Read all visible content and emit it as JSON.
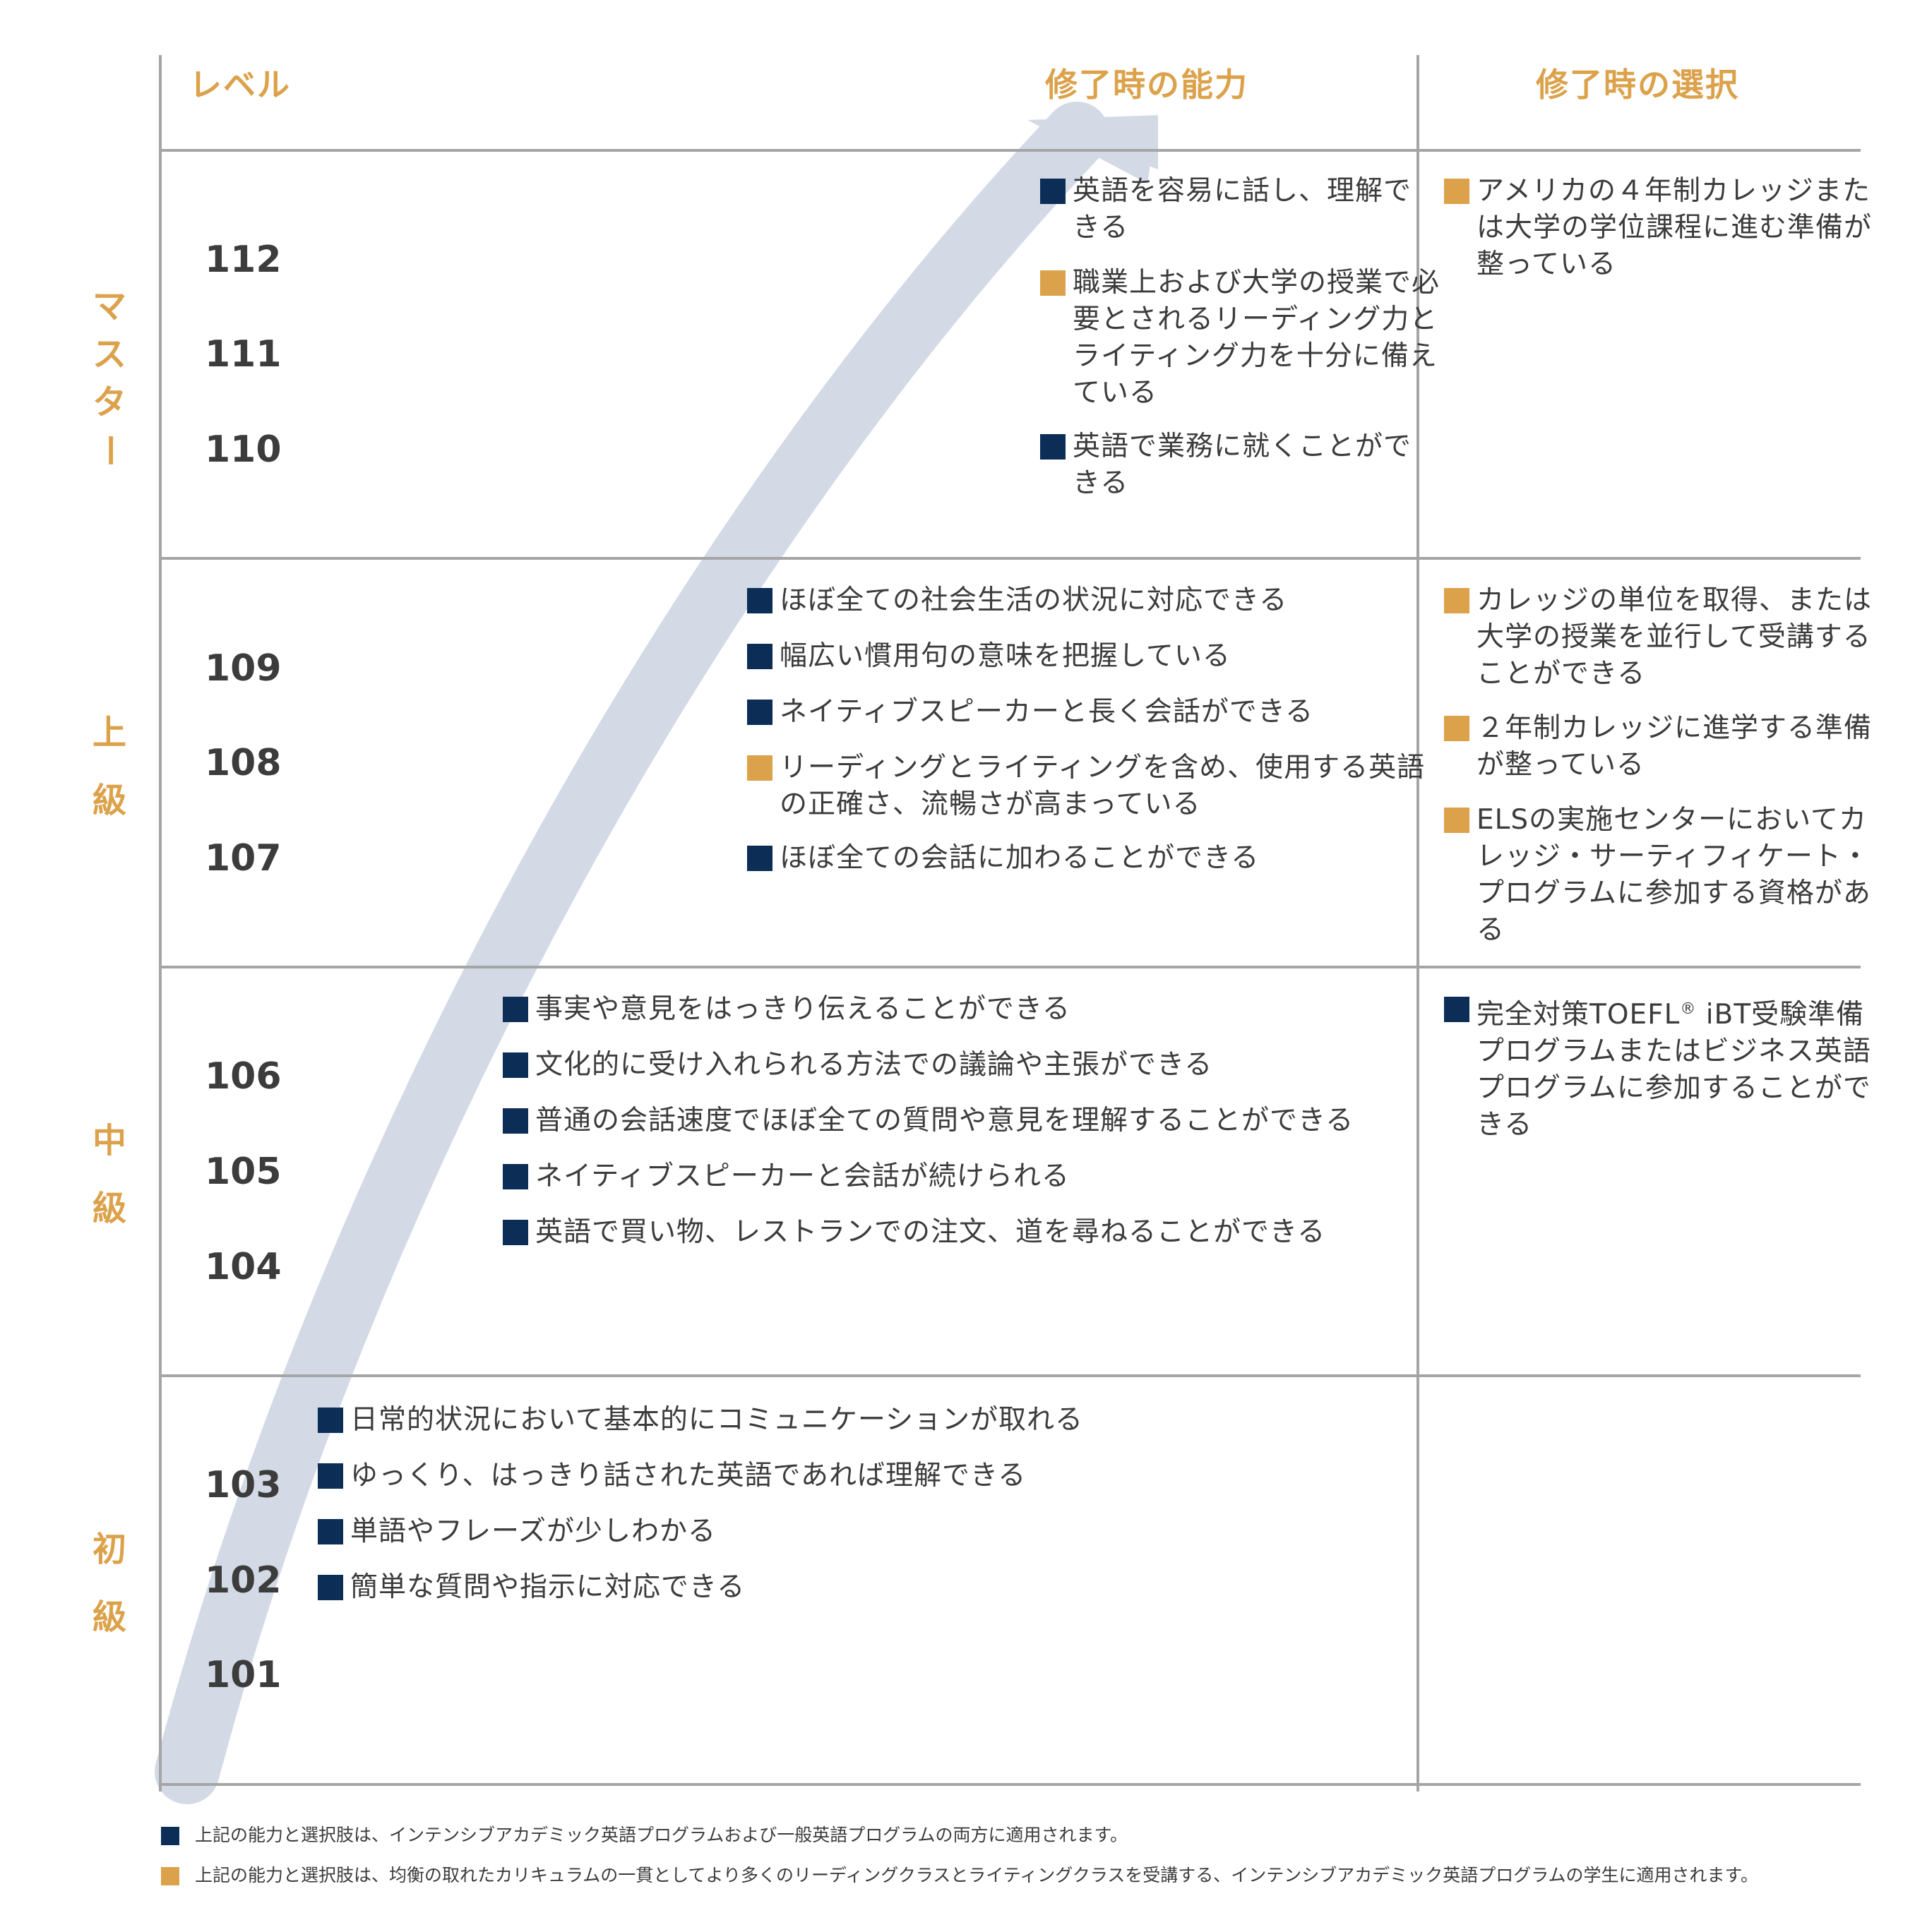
{
  "colors": {
    "navy": "#0b2d56",
    "gold": "#dca24b",
    "arrow": "#d3dae6",
    "grid": "#a5a5a5"
  },
  "header": {
    "level": "レベル",
    "ability": "修了時の能力",
    "options": "修了時の選択"
  },
  "tiers": [
    {
      "label": "マスター",
      "levels": [
        "112",
        "111",
        "110"
      ]
    },
    {
      "label": "上級",
      "levels": [
        "109",
        "108",
        "107"
      ]
    },
    {
      "label": "中級",
      "levels": [
        "106",
        "105",
        "104"
      ]
    },
    {
      "label": "初級",
      "levels": [
        "103",
        "102",
        "101"
      ]
    }
  ],
  "tier_labels": {
    "master": [
      "マ",
      "ス",
      "タ",
      "ー"
    ],
    "advanced": [
      "上",
      "級"
    ],
    "intermediate": [
      "中",
      "級"
    ],
    "beginner": [
      "初",
      "級"
    ]
  },
  "abilities": {
    "master": [
      {
        "marker": "navy",
        "text": "英語を容易に話し、理解できる"
      },
      {
        "marker": "gold",
        "text": "職業上および大学の授業で必要とされるリーディング力とライティング力を十分に備えている"
      },
      {
        "marker": "navy",
        "text": "英語で業務に就くことができる"
      }
    ],
    "advanced": [
      {
        "marker": "navy",
        "text": "ほぼ全ての社会生活の状況に対応できる"
      },
      {
        "marker": "navy",
        "text": "幅広い慣用句の意味を把握している"
      },
      {
        "marker": "navy",
        "text": "ネイティブスピーカーと長く会話ができる"
      },
      {
        "marker": "gold",
        "text": "リーディングとライティングを含め、使用する英語の正確さ、流暢さが高まっている"
      },
      {
        "marker": "navy",
        "text": "ほぼ全ての会話に加わることができる"
      }
    ],
    "intermediate": [
      {
        "marker": "navy",
        "text": "事実や意見をはっきり伝えることができる"
      },
      {
        "marker": "navy",
        "text": "文化的に受け入れられる方法での議論や主張ができる"
      },
      {
        "marker": "navy",
        "text": "普通の会話速度でほぼ全ての質問や意見を理解することができる"
      },
      {
        "marker": "navy",
        "text": "ネイティブスピーカーと会話が続けられる"
      },
      {
        "marker": "navy",
        "text": "英語で買い物、レストランでの注文、道を尋ねることができる"
      }
    ],
    "beginner": [
      {
        "marker": "navy",
        "text": "日常的状況において基本的にコミュニケーションが取れる"
      },
      {
        "marker": "navy",
        "text": "ゆっくり、はっきり話された英語であれば理解できる"
      },
      {
        "marker": "navy",
        "text": "単語やフレーズが少しわかる"
      },
      {
        "marker": "navy",
        "text": "簡単な質問や指示に対応できる"
      }
    ]
  },
  "options": {
    "master": [
      {
        "marker": "gold",
        "text": "アメリカの４年制カレッジまたは大学の学位課程に進む準備が整っている"
      }
    ],
    "advanced": [
      {
        "marker": "gold",
        "text": "カレッジの単位を取得、または大学の授業を並行して受講することができる"
      },
      {
        "marker": "gold",
        "text": "２年制カレッジに進学する準備が整っている"
      },
      {
        "marker": "gold",
        "text": "ELSの実施センターにおいてカレッジ・サーティフィケート・プログラムに参加する資格がある"
      }
    ],
    "intermediate": [
      {
        "marker": "navy",
        "text_before": "完全対策TOEFL",
        "sup": "®",
        "text_after": " iBT受験準備プログラムまたはビジネス英語プログラムに参加することができる"
      }
    ]
  },
  "footnotes": [
    {
      "marker": "navy",
      "text": "上記の能力と選択肢は、インテンシブアカデミック英語プログラムおよび一般英語プログラムの両方に適用されます。"
    },
    {
      "marker": "gold",
      "text": "上記の能力と選択肢は、均衡の取れたカリキュラムの一貫としてより多くのリーディングクラスとライティングクラスを受講する、インテンシブアカデミック英語プログラムの学生に適用されます。"
    }
  ]
}
